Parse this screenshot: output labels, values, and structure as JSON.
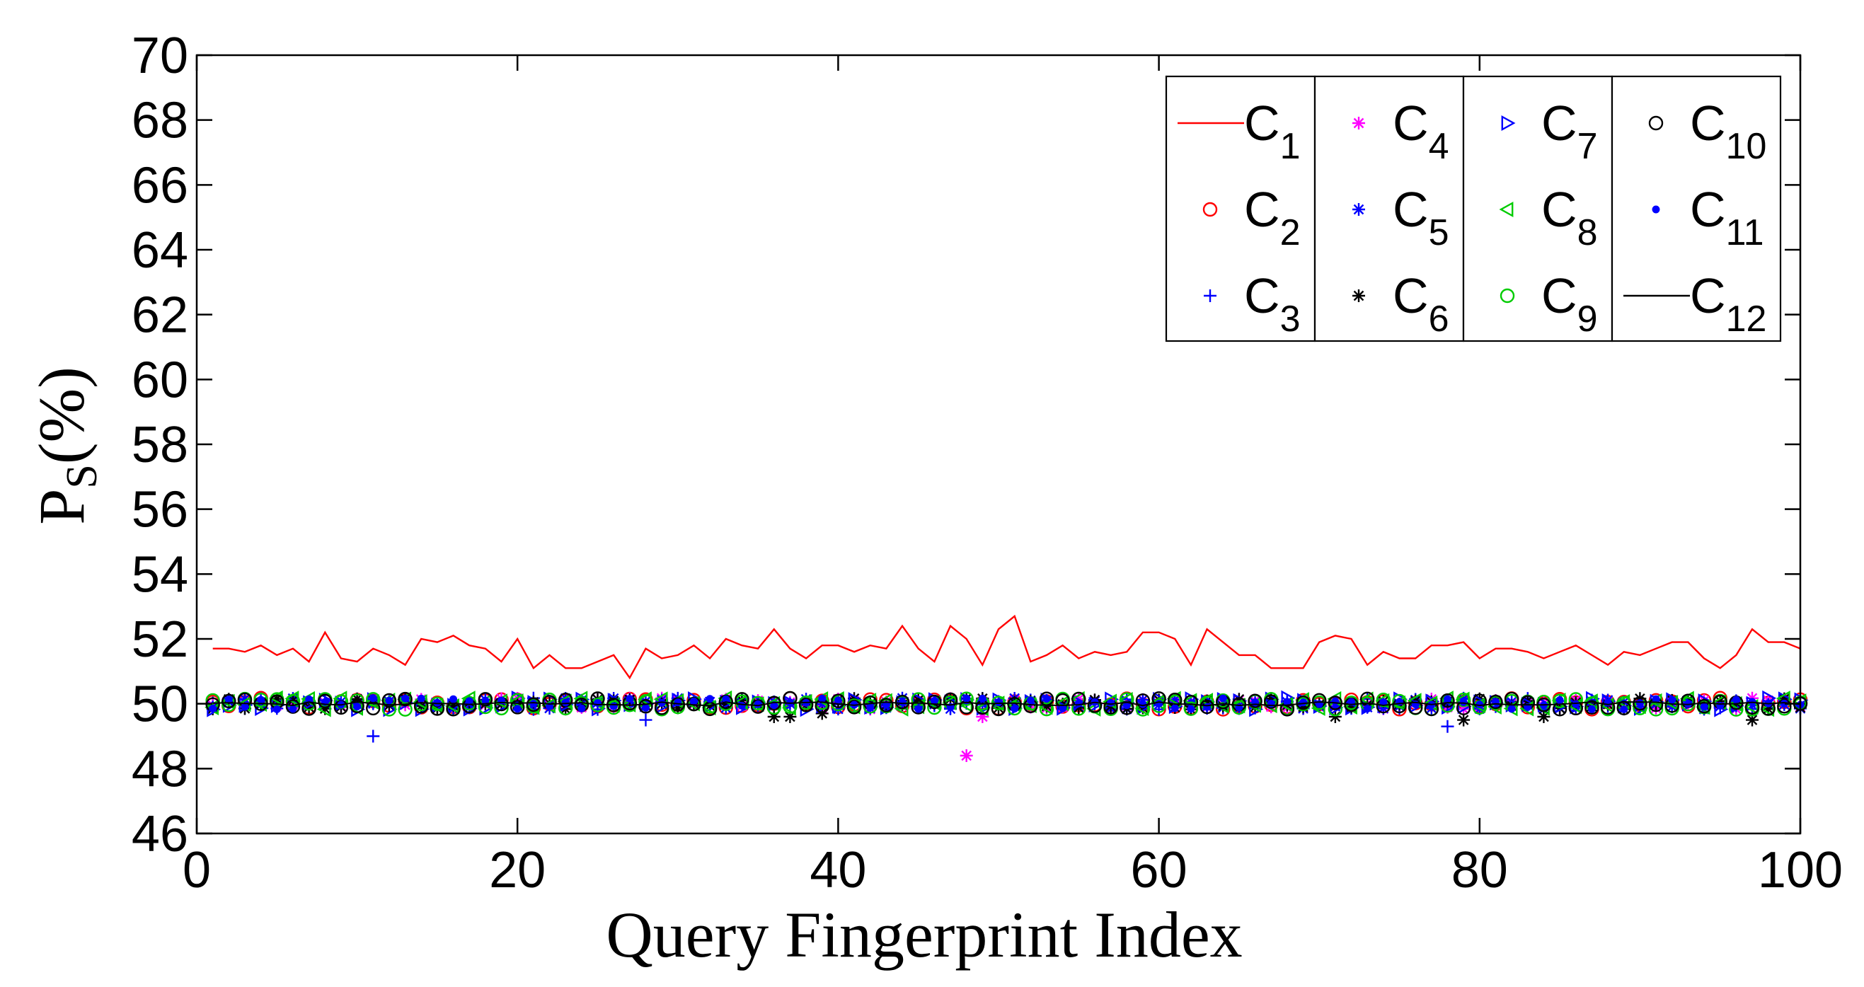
{
  "chart_data": {
    "type": "scatter",
    "title": "",
    "xlabel": "Query Fingerprint Index",
    "ylabel": {
      "base": "P",
      "sub": "S",
      "suffix": "(%)"
    },
    "xlim": [
      0,
      100
    ],
    "ylim": [
      46,
      70
    ],
    "xticks": [
      0,
      20,
      40,
      60,
      80,
      100
    ],
    "yticks": [
      46,
      48,
      50,
      52,
      54,
      56,
      58,
      60,
      62,
      64,
      66,
      68,
      70
    ],
    "grid": false,
    "legend_position": "top-right",
    "series": [
      {
        "name": "C1",
        "label_base": "C",
        "label_sub": "1",
        "color": "#ff0000",
        "marker": "line",
        "values": [
          51.7,
          51.7,
          51.6,
          51.8,
          51.5,
          51.7,
          51.3,
          52.2,
          51.4,
          51.3,
          51.7,
          51.5,
          51.2,
          52.0,
          51.9,
          52.1,
          51.8,
          51.7,
          51.3,
          52.0,
          51.1,
          51.5,
          51.1,
          51.1,
          51.3,
          51.5,
          50.8,
          51.7,
          51.4,
          51.5,
          51.8,
          51.4,
          52.0,
          51.8,
          51.7,
          52.3,
          51.7,
          51.4,
          51.8,
          51.8,
          51.6,
          51.8,
          51.7,
          52.4,
          51.7,
          51.3,
          52.4,
          52.0,
          51.2,
          52.3,
          52.7,
          51.3,
          51.5,
          51.8,
          51.4,
          51.6,
          51.5,
          51.6,
          52.2,
          52.2,
          52.0,
          51.2,
          52.3,
          51.9,
          51.5,
          51.5,
          51.1,
          51.1,
          51.1,
          51.9,
          52.1,
          52.0,
          51.2,
          51.6,
          51.4,
          51.4,
          51.8,
          51.8,
          51.9,
          51.4,
          51.7,
          51.7,
          51.6,
          51.4,
          51.6,
          51.8,
          51.5,
          51.2,
          51.6,
          51.5,
          51.7,
          51.9,
          51.9,
          51.4,
          51.1,
          51.5,
          52.3,
          51.9,
          51.9,
          51.7
        ]
      },
      {
        "name": "C2",
        "label_base": "C",
        "label_sub": "2",
        "color": "#ff0000",
        "marker": "circle"
      },
      {
        "name": "C3",
        "label_base": "C",
        "label_sub": "3",
        "color": "#0000ff",
        "marker": "plus",
        "outliers": [
          [
            11,
            49.0
          ],
          [
            28,
            49.5
          ],
          [
            78,
            49.3
          ]
        ]
      },
      {
        "name": "C4",
        "label_base": "C",
        "label_sub": "4",
        "color": "#ff00ff",
        "marker": "star",
        "outliers": [
          [
            48,
            48.4
          ],
          [
            49,
            49.6
          ]
        ]
      },
      {
        "name": "C5",
        "label_base": "C",
        "label_sub": "5",
        "color": "#0000ff",
        "marker": "star"
      },
      {
        "name": "C6",
        "label_base": "C",
        "label_sub": "6",
        "color": "#000000",
        "marker": "star",
        "outliers": [
          [
            36,
            49.6
          ],
          [
            37,
            49.6
          ],
          [
            39,
            49.7
          ],
          [
            71,
            49.6
          ],
          [
            79,
            49.5
          ],
          [
            84,
            49.6
          ],
          [
            97,
            49.5
          ]
        ]
      },
      {
        "name": "C7",
        "label_base": "C",
        "label_sub": "7",
        "color": "#0000ff",
        "marker": "triangle-right"
      },
      {
        "name": "C8",
        "label_base": "C",
        "label_sub": "8",
        "color": "#00cc00",
        "marker": "triangle-left"
      },
      {
        "name": "C9",
        "label_base": "C",
        "label_sub": "9",
        "color": "#00cc00",
        "marker": "circle"
      },
      {
        "name": "C10",
        "label_base": "C",
        "label_sub": "10",
        "color": "#000000",
        "marker": "circle"
      },
      {
        "name": "C11",
        "label_base": "C",
        "label_sub": "11",
        "color": "#0000ff",
        "marker": "dot"
      },
      {
        "name": "C12",
        "label_base": "C",
        "label_sub": "12",
        "color": "#000000",
        "marker": "line"
      }
    ],
    "note_cluster": "Series C2–C12 lie at approximately 50 (range ≈ 49.8–50.2) across all 100 query indices, apart from the listed outliers."
  }
}
